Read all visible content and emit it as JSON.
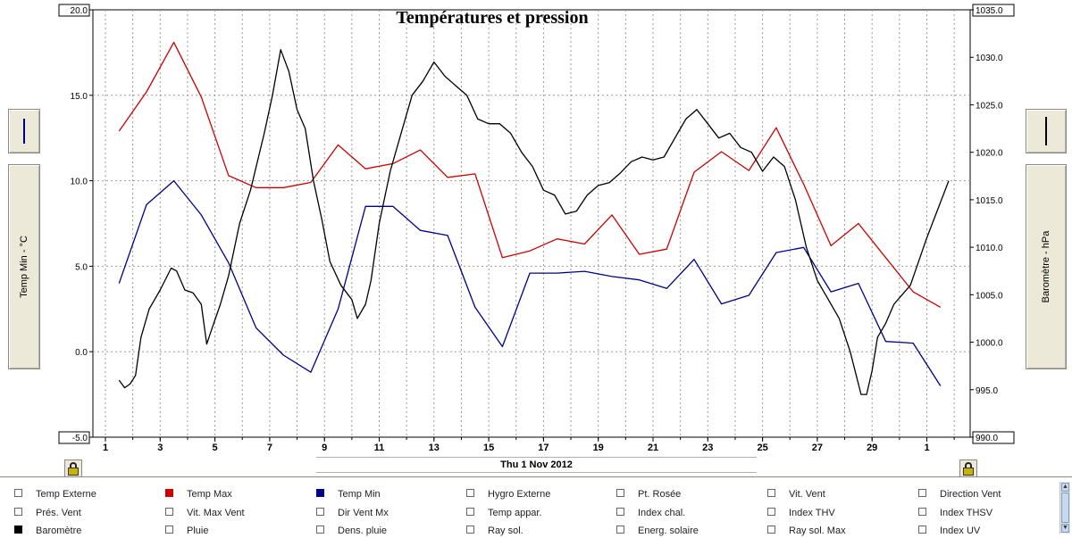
{
  "chart_data": {
    "type": "line",
    "title": "Températures et pression",
    "x_date_label": "Thu 1 Nov 2012",
    "x_tick_labels": [
      "1",
      "3",
      "5",
      "7",
      "9",
      "11",
      "13",
      "15",
      "17",
      "19",
      "21",
      "23",
      "25",
      "27",
      "29",
      "1"
    ],
    "left_axis": {
      "label": "Temp Min - °C",
      "ylim": [
        -5,
        20
      ],
      "ticks": [
        "20.0",
        "15.0",
        "10.0",
        "5.0",
        "0.0",
        "-5.0"
      ]
    },
    "right_axis": {
      "label": "Baromètre - hPa",
      "ylim": [
        990,
        1035
      ],
      "ticks": [
        "1035.0",
        "1030.0",
        "1025.0",
        "1020.0",
        "1015.0",
        "1010.0",
        "1005.0",
        "1000.0",
        "995.0",
        "990.0"
      ]
    },
    "grid": true,
    "series": [
      {
        "name": "Temp Max",
        "axis": "left",
        "color": "#cc0000",
        "x": [
          1.5,
          2.5,
          3.5,
          4.5,
          5.5,
          6.5,
          7.5,
          8.5,
          9.5,
          10.5,
          11.5,
          12.5,
          13.5,
          14.5,
          15.5,
          16.5,
          17.5,
          18.5,
          19.5,
          20.5,
          21.5,
          22.5,
          23.5,
          24.5,
          25.5,
          26.5,
          27.5,
          28.5,
          29.5,
          30.5,
          31.5
        ],
        "values": [
          12.9,
          15.2,
          18.1,
          14.9,
          10.3,
          9.6,
          9.6,
          9.9,
          12.1,
          10.7,
          11.0,
          11.8,
          10.2,
          10.4,
          5.5,
          5.9,
          6.6,
          6.3,
          8.0,
          5.7,
          6.0,
          10.5,
          11.7,
          10.6,
          13.1,
          9.8,
          6.2,
          7.5,
          5.5,
          3.5,
          2.6
        ]
      },
      {
        "name": "Temp Min",
        "axis": "left",
        "color": "#00008b",
        "x": [
          1.5,
          2.5,
          3.5,
          4.5,
          5.5,
          6.5,
          7.5,
          8.5,
          9.5,
          10.5,
          11.5,
          12.5,
          13.5,
          14.5,
          15.5,
          16.5,
          17.5,
          18.5,
          19.5,
          20.5,
          21.5,
          22.5,
          23.5,
          24.5,
          25.5,
          26.5,
          27.5,
          28.5,
          29.5,
          30.5,
          31.5
        ],
        "values": [
          4.0,
          8.6,
          10.0,
          8.0,
          5.2,
          1.4,
          -0.2,
          -1.2,
          2.5,
          8.5,
          8.5,
          7.1,
          6.8,
          2.6,
          0.3,
          4.6,
          4.6,
          4.7,
          4.4,
          4.2,
          3.7,
          5.4,
          2.8,
          3.3,
          5.8,
          6.1,
          3.5,
          4.0,
          0.6,
          0.5,
          -2.0
        ]
      },
      {
        "name": "Baromètre",
        "axis": "right",
        "color": "#000000",
        "x": [
          1.5,
          1.7,
          1.9,
          2.1,
          2.3,
          2.6,
          3.0,
          3.4,
          3.6,
          3.9,
          4.2,
          4.5,
          4.7,
          4.9,
          5.2,
          5.5,
          5.9,
          6.3,
          6.8,
          7.1,
          7.4,
          7.7,
          8.0,
          8.3,
          8.6,
          8.9,
          9.2,
          9.6,
          10.0,
          10.2,
          10.5,
          10.7,
          11.0,
          11.4,
          11.8,
          12.2,
          12.6,
          13.0,
          13.4,
          13.8,
          14.2,
          14.6,
          15.0,
          15.4,
          15.8,
          16.2,
          16.6,
          17.0,
          17.4,
          17.8,
          18.2,
          18.6,
          19.0,
          19.4,
          19.8,
          20.2,
          20.6,
          21.0,
          21.4,
          21.8,
          22.2,
          22.6,
          23.0,
          23.4,
          23.8,
          24.2,
          24.6,
          25.0,
          25.4,
          25.8,
          26.2,
          26.6,
          27.0,
          27.4,
          27.8,
          28.2,
          28.6,
          28.8,
          29.0,
          29.2,
          29.5,
          29.8,
          30.1,
          30.4,
          30.7,
          31.0,
          31.4,
          31.8
        ],
        "values": [
          996.0,
          995.2,
          995.6,
          996.5,
          1000.5,
          1003.5,
          1005.5,
          1007.8,
          1007.5,
          1005.5,
          1005.2,
          1004.0,
          999.8,
          1001.5,
          1004.0,
          1007.0,
          1012.5,
          1016.0,
          1022.0,
          1026.0,
          1030.8,
          1028.5,
          1024.5,
          1022.5,
          1017.0,
          1013.0,
          1008.5,
          1006.0,
          1004.5,
          1002.5,
          1004.0,
          1006.5,
          1012.5,
          1018.0,
          1022.0,
          1026.0,
          1027.5,
          1029.5,
          1028.0,
          1027.0,
          1026.0,
          1023.5,
          1023.0,
          1023.0,
          1022.0,
          1020.0,
          1018.5,
          1016.0,
          1015.5,
          1013.5,
          1013.8,
          1015.5,
          1016.5,
          1016.8,
          1017.8,
          1019.0,
          1019.5,
          1019.2,
          1019.5,
          1021.5,
          1023.5,
          1024.5,
          1023.0,
          1021.5,
          1022.0,
          1020.5,
          1020.0,
          1018.0,
          1019.5,
          1018.5,
          1015.0,
          1010.0,
          1006.5,
          1004.5,
          1002.5,
          999.0,
          994.5,
          994.5,
          997.0,
          1000.5,
          1002.0,
          1004.0,
          1005.0,
          1006.0,
          1008.5,
          1011.0,
          1014.0,
          1017.0
        ]
      }
    ]
  },
  "legend": [
    {
      "label": "Temp Externe",
      "checked": false,
      "color": ""
    },
    {
      "label": "Temp Max",
      "checked": true,
      "color": "#cc0000"
    },
    {
      "label": "Temp Min",
      "checked": true,
      "color": "#00008b"
    },
    {
      "label": "Hygro Externe",
      "checked": false,
      "color": ""
    },
    {
      "label": "Pt. Rosée",
      "checked": false,
      "color": ""
    },
    {
      "label": "Vit. Vent",
      "checked": false,
      "color": ""
    },
    {
      "label": "Direction Vent",
      "checked": false,
      "color": ""
    },
    {
      "label": "Prés. Vent",
      "checked": false,
      "color": ""
    },
    {
      "label": "Vit. Max Vent",
      "checked": false,
      "color": ""
    },
    {
      "label": "Dir Vent Mx",
      "checked": false,
      "color": ""
    },
    {
      "label": "Temp appar.",
      "checked": false,
      "color": ""
    },
    {
      "label": "Index chal.",
      "checked": false,
      "color": ""
    },
    {
      "label": "Index THV",
      "checked": false,
      "color": ""
    },
    {
      "label": "Index THSV",
      "checked": false,
      "color": ""
    },
    {
      "label": "Baromètre",
      "checked": true,
      "color": "#000000"
    },
    {
      "label": "Pluie",
      "checked": false,
      "color": ""
    },
    {
      "label": "Dens. pluie",
      "checked": false,
      "color": ""
    },
    {
      "label": "Ray sol.",
      "checked": false,
      "color": ""
    },
    {
      "label": "Energ. solaire",
      "checked": false,
      "color": ""
    },
    {
      "label": "Ray sol. Max",
      "checked": false,
      "color": ""
    },
    {
      "label": "Index UV",
      "checked": false,
      "color": ""
    }
  ],
  "left_button": {
    "label": "Temp Min - °C",
    "indicator_color": "#00008b"
  },
  "right_button": {
    "label": "Baromètre - hPa",
    "indicator_color": "#000000"
  },
  "icons": {
    "left_lock": "lock-icon",
    "right_lock": "lock-icon"
  }
}
